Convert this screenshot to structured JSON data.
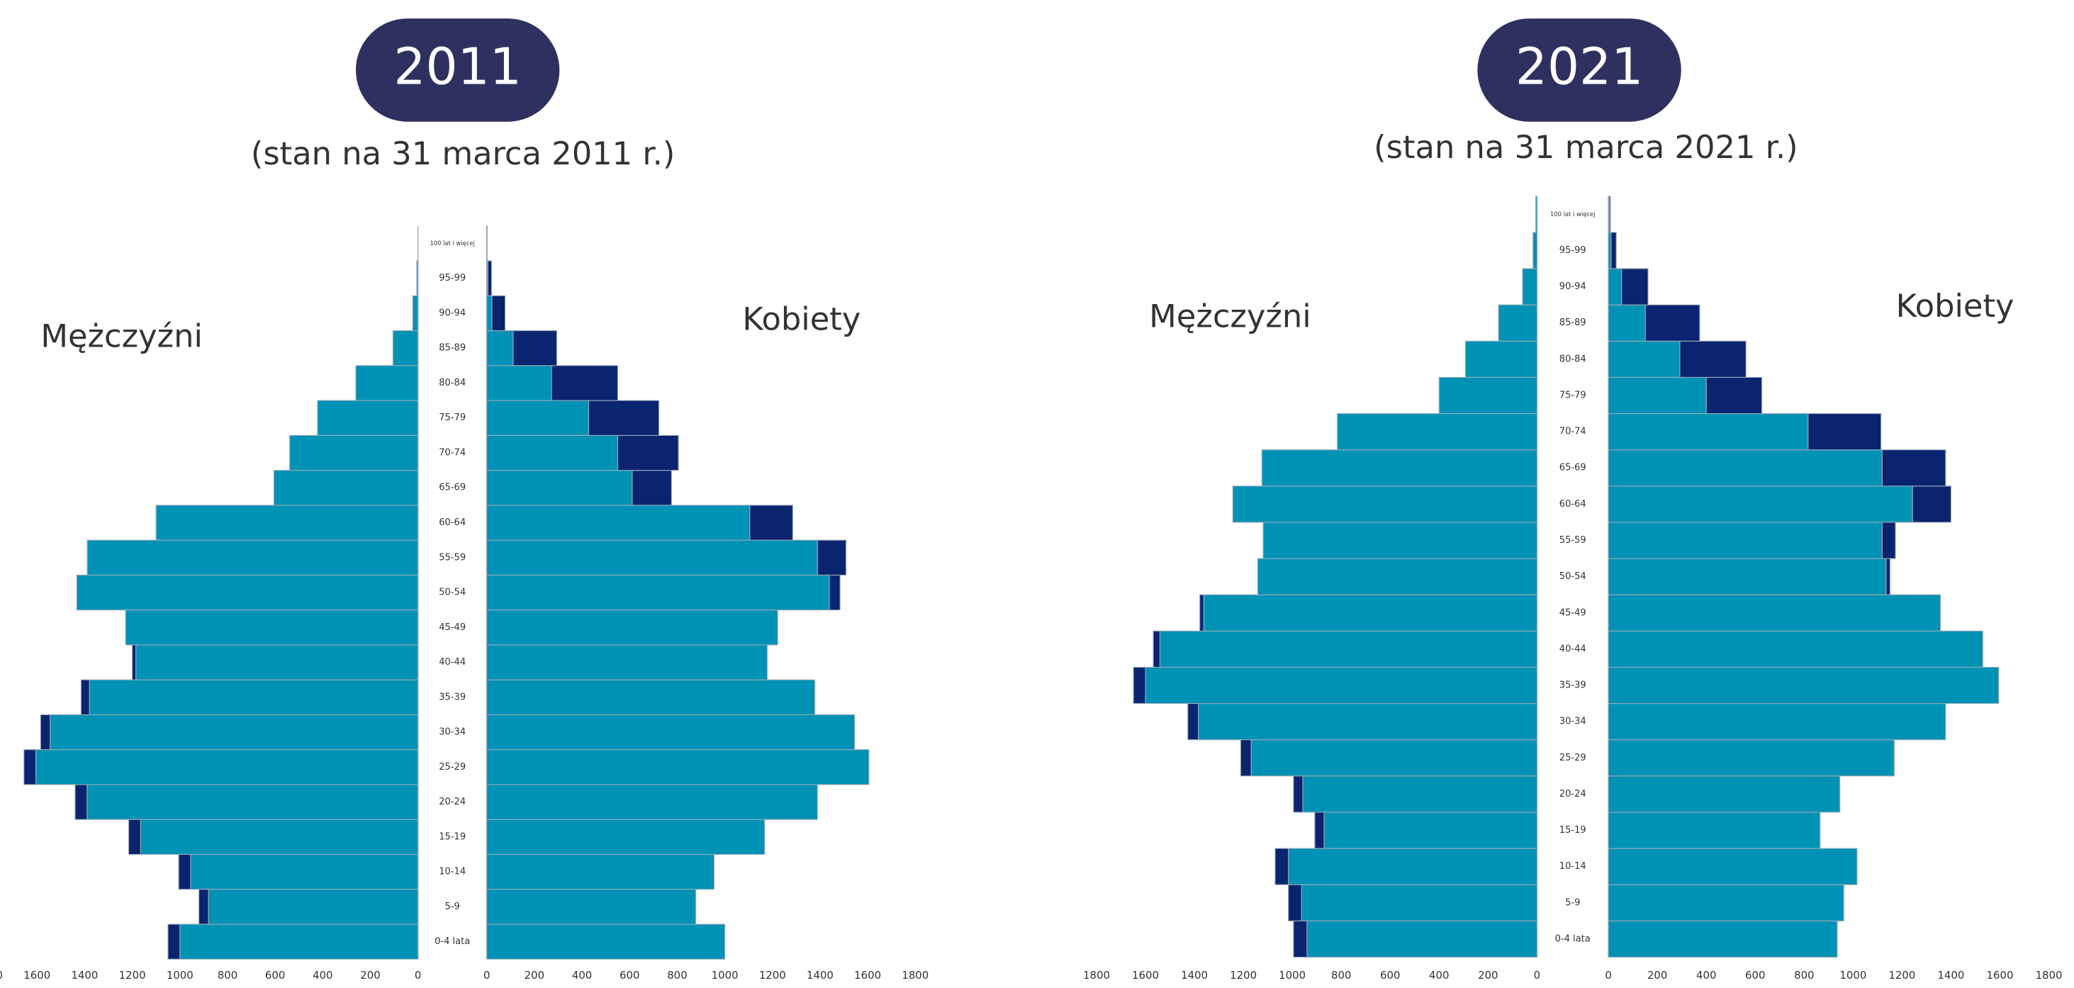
{
  "chart_data": [
    {
      "type": "pyramid",
      "title": "2011",
      "subtitle": "(stan na 31 marca 2011 r.)",
      "categories": [
        "0-4 lata",
        "5-9",
        "10-14",
        "15-19",
        "20-24",
        "25-29",
        "30-34",
        "35-39",
        "40-44",
        "45-49",
        "50-54",
        "55-59",
        "60-64",
        "65-69",
        "70-74",
        "75-79",
        "80-84",
        "85-89",
        "90-94",
        "95-99",
        "100 lat i więcej"
      ],
      "series": [
        {
          "name": "Mężczyźni",
          "color": "#0092b5",
          "side": "left",
          "values": [
            1000,
            880,
            955,
            1165,
            1390,
            1605,
            1545,
            1380,
            1185,
            1228,
            1433,
            1389,
            1100,
            605,
            539,
            422,
            261,
            105,
            22,
            5,
            0
          ]
        },
        {
          "color": "#0a2470",
          "side": "left",
          "stacked": true,
          "values": [
            50,
            40,
            50,
            50,
            50,
            50,
            40,
            35,
            15,
            0,
            0,
            0,
            0,
            0,
            0,
            0,
            0,
            0,
            0,
            0,
            0
          ]
        },
        {
          "name": "Kobiety",
          "color": "#0092b5",
          "side": "right",
          "values": [
            1000,
            878,
            955,
            1167,
            1389,
            1605,
            1545,
            1378,
            1178,
            1222,
            1439,
            1389,
            1105,
            611,
            550,
            428,
            272,
            111,
            22,
            5,
            0
          ]
        },
        {
          "color": "#0a2470",
          "side": "right",
          "stacked": true,
          "values": [
            0,
            0,
            0,
            0,
            0,
            0,
            0,
            0,
            0,
            0,
            45,
            120,
            180,
            165,
            255,
            295,
            278,
            183,
            55,
            15,
            2
          ]
        }
      ],
      "xlim": [
        0,
        1800
      ],
      "xticks": [
        0,
        200,
        400,
        600,
        800,
        1000,
        1200,
        1400,
        1600,
        1800
      ]
    },
    {
      "type": "pyramid",
      "title": "2021",
      "subtitle": "(stan na 31 marca 2021 r.)",
      "categories": [
        "0-4 lata",
        "5-9",
        "10-14",
        "15-19",
        "20-24",
        "25-29",
        "30-34",
        "35-39",
        "40-44",
        "45-49",
        "50-54",
        "55-59",
        "60-64",
        "65-69",
        "70-74",
        "75-79",
        "80-84",
        "85-89",
        "90-94",
        "95-99",
        "100 lat i więcej"
      ],
      "series": [
        {
          "name": "Mężczyźni",
          "color": "#0092b5",
          "side": "left",
          "values": [
            940,
            962,
            1016,
            870,
            957,
            1168,
            1384,
            1600,
            1541,
            1362,
            1141,
            1119,
            1243,
            1124,
            816,
            400,
            292,
            157,
            59,
            16,
            5
          ]
        },
        {
          "color": "#0a2470",
          "side": "left",
          "stacked": true,
          "values": [
            55,
            54,
            54,
            38,
            38,
            43,
            43,
            49,
            27,
            16,
            0,
            0,
            0,
            0,
            0,
            0,
            0,
            0,
            0,
            0,
            0
          ]
        },
        {
          "name": "Kobiety",
          "color": "#0092b5",
          "side": "right",
          "values": [
            935,
            962,
            1016,
            865,
            946,
            1168,
            1378,
            1595,
            1530,
            1357,
            1135,
            1119,
            1243,
            1119,
            816,
            400,
            292,
            151,
            54,
            11,
            3
          ]
        },
        {
          "color": "#0a2470",
          "side": "right",
          "stacked": true,
          "values": [
            0,
            0,
            0,
            0,
            0,
            0,
            0,
            0,
            0,
            0,
            16,
            54,
            157,
            259,
            298,
            227,
            270,
            222,
            108,
            21,
            5
          ]
        }
      ],
      "xlim": [
        0,
        1800
      ],
      "xticks": [
        0,
        200,
        400,
        600,
        800,
        1000,
        1200,
        1400,
        1600,
        1800
      ]
    }
  ]
}
